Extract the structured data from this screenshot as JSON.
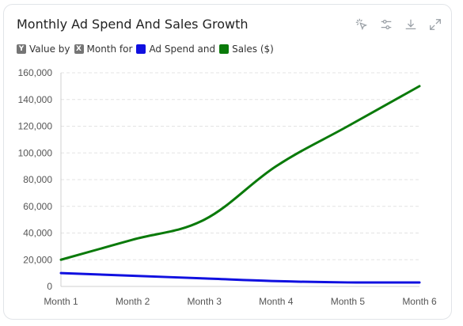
{
  "title": "Monthly Ad Spend And Sales Growth",
  "toolbar": {
    "icons": [
      "select-icon",
      "filter-icon",
      "download-icon",
      "expand-icon"
    ]
  },
  "legend": {
    "y_badge": "Y",
    "y_text": "Value by",
    "x_badge": "X",
    "x_text": "Month for",
    "series_1": "Ad Spend and",
    "series_2": "Sales ($)"
  },
  "colors": {
    "badge": "#757575",
    "ad_spend": "#1010e0",
    "sales": "#0a7a0a",
    "grid": "#e3e3e3"
  },
  "chart_data": {
    "type": "line",
    "title": "Monthly Ad Spend And Sales Growth",
    "categories": [
      "Month 1",
      "Month 2",
      "Month 3",
      "Month 4",
      "Month 5",
      "Month 6"
    ],
    "series": [
      {
        "name": "Ad Spend",
        "values": [
          10000,
          8000,
          6000,
          4000,
          3000,
          3000
        ],
        "color": "#1010e0"
      },
      {
        "name": "Sales ($)",
        "values": [
          20000,
          35000,
          50000,
          90000,
          120000,
          150000
        ],
        "color": "#0a7a0a"
      }
    ],
    "y_ticks": [
      "0",
      "20,000",
      "40,000",
      "60,000",
      "80,000",
      "100,000",
      "120,000",
      "140,000",
      "160,000"
    ],
    "ylim": [
      0,
      160000
    ],
    "grid": true
  }
}
